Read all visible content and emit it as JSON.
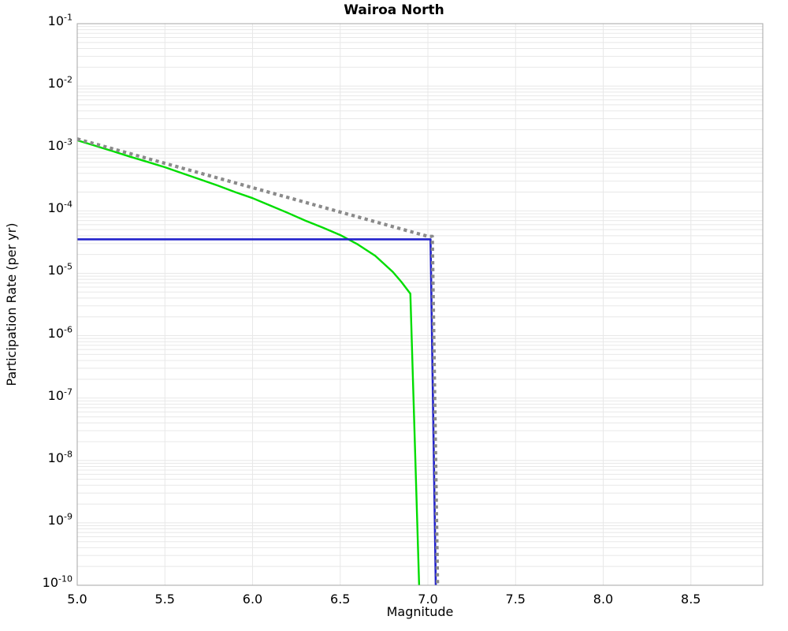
{
  "chart_data": {
    "type": "line",
    "title": "Wairoa North",
    "xlabel": "Magnitude",
    "ylabel": "Participation Rate (per yr)",
    "x_range": [
      5.0,
      8.91
    ],
    "y_range_exponents": [
      -10,
      -1
    ],
    "y_scale": "log",
    "grid": true,
    "legend": "none",
    "x_tick_values": [
      5.0,
      5.5,
      6.0,
      6.5,
      7.0,
      7.5,
      8.0,
      8.5
    ],
    "x_tick_labels": [
      "5.0",
      "5.5",
      "6.0",
      "6.5",
      "7.0",
      "7.5",
      "8.0",
      "8.5"
    ],
    "y_tick_base": "10",
    "y_tick_exponents": [
      "-1",
      "-2",
      "-3",
      "-4",
      "-5",
      "-6",
      "-7",
      "-8",
      "-9",
      "-10"
    ],
    "series": [
      {
        "name": "green-line",
        "color": "#00dd00",
        "style": "solid",
        "width": 2.4,
        "points": [
          [
            5.0,
            0.00135
          ],
          [
            5.1,
            0.00111
          ],
          [
            5.2,
            0.00091
          ],
          [
            5.3,
            0.00074
          ],
          [
            5.4,
            0.00061
          ],
          [
            5.5,
            0.0005
          ],
          [
            5.6,
            0.0004
          ],
          [
            5.7,
            0.00032
          ],
          [
            5.8,
            0.000255
          ],
          [
            5.9,
            0.0002
          ],
          [
            6.0,
            0.00016
          ],
          [
            6.1,
            0.000122
          ],
          [
            6.2,
            9.3e-05
          ],
          [
            6.3,
            7e-05
          ],
          [
            6.4,
            5.4e-05
          ],
          [
            6.5,
            4.1e-05
          ],
          [
            6.6,
            2.9e-05
          ],
          [
            6.7,
            1.9e-05
          ],
          [
            6.8,
            1.05e-05
          ],
          [
            6.85,
            7.2e-06
          ],
          [
            6.9,
            4.7e-06
          ],
          [
            6.95,
            1e-10
          ]
        ]
      },
      {
        "name": "blue-line",
        "color": "#2222cc",
        "style": "solid",
        "width": 2.6,
        "points": [
          [
            5.0,
            3.5e-05
          ],
          [
            7.015,
            3.5e-05
          ],
          [
            7.045,
            1e-10
          ]
        ]
      },
      {
        "name": "dotted-gray-line",
        "color": "#8a8a8a",
        "style": "dotted",
        "width": 4.2,
        "points": [
          [
            5.0,
            0.00142
          ],
          [
            7.0,
            3.9e-05
          ],
          [
            7.025,
            3.9e-05
          ],
          [
            7.055,
            1e-10
          ]
        ]
      }
    ]
  }
}
